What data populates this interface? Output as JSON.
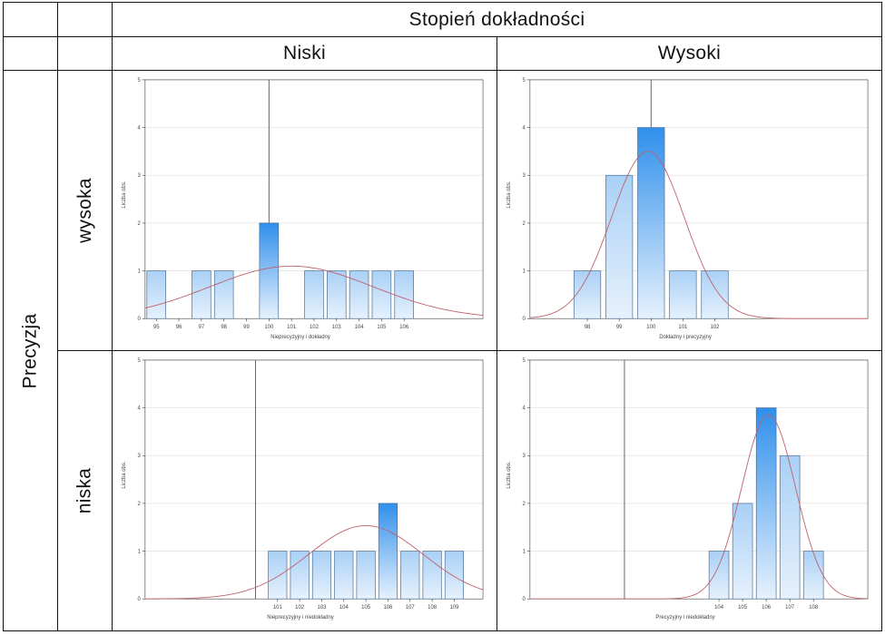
{
  "table": {
    "top_header": "Stopień dokładności",
    "col_low": "Niski",
    "col_high": "Wysoki",
    "row_group": "Precyzja",
    "row_high": "wysoka",
    "row_low": "niska"
  },
  "colors": {
    "bar_light": "#e6f1fc",
    "bar_mid": "#a9d0f6",
    "bar_dark": "#2f8fec",
    "bar_border": "#4a6f95",
    "curve": "#c0606a",
    "gridline": "#e2e2e2",
    "axis": "#333333"
  },
  "chart_data": [
    {
      "type": "bar",
      "ylabel": "Liczba obs.",
      "xlabel": "Nieprecyzyjny i dokładny",
      "xlim": [
        94.5,
        109.5
      ],
      "ylim": [
        0,
        5
      ],
      "yticks": [
        0,
        1,
        2,
        3,
        4,
        5
      ],
      "xticks": [
        "95",
        "96",
        "97",
        "98",
        "99",
        "100",
        "101",
        "102",
        "103",
        "104",
        "105",
        "106"
      ],
      "x": [
        95,
        96,
        97,
        98,
        99,
        100,
        101,
        102,
        103,
        104,
        105,
        106
      ],
      "values": [
        1,
        0,
        1,
        1,
        0,
        2,
        0,
        1,
        1,
        1,
        1,
        1
      ],
      "reference_line_x": 100,
      "normal_curve": {
        "mean": 101,
        "sd": 3.63
      }
    },
    {
      "type": "bar",
      "ylabel": "Liczba obs.",
      "xlabel": "Dokładny i precyzyjny",
      "xlim": [
        96.2,
        106.8
      ],
      "ylim": [
        0,
        5
      ],
      "yticks": [
        0,
        1,
        2,
        3,
        4,
        5
      ],
      "xticks": [
        "98",
        "99",
        "100",
        "101",
        "102"
      ],
      "x": [
        98,
        99,
        100,
        101,
        102
      ],
      "values": [
        1,
        3,
        4,
        1,
        1
      ],
      "reference_line_x": 100,
      "normal_curve": {
        "mean": 99.9,
        "sd": 1.14
      }
    },
    {
      "type": "bar",
      "ylabel": "Liczba obs.",
      "xlabel": "Nieprecyzyjny i niedokładny",
      "xlim": [
        95,
        110.3
      ],
      "ylim": [
        0,
        5
      ],
      "yticks": [
        0,
        1,
        2,
        3,
        4,
        5
      ],
      "xticks": [
        "101",
        "102",
        "103",
        "104",
        "105",
        "106",
        "107",
        "108",
        "109"
      ],
      "x": [
        101,
        102,
        103,
        104,
        105,
        106,
        107,
        108,
        109
      ],
      "values": [
        1,
        1,
        1,
        1,
        1,
        2,
        1,
        1,
        1
      ],
      "reference_line_x": 100,
      "normal_curve": {
        "mean": 105,
        "sd": 2.6
      }
    },
    {
      "type": "bar",
      "ylabel": "Liczba obs.",
      "xlabel": "Precyzyjny i niedokładny",
      "xlim": [
        96,
        110.3
      ],
      "ylim": [
        0,
        5
      ],
      "yticks": [
        0,
        1,
        2,
        3,
        4,
        5
      ],
      "xticks": [
        "104",
        "105",
        "106",
        "107",
        "108"
      ],
      "x": [
        104,
        105,
        106,
        107,
        108
      ],
      "values": [
        1,
        2,
        4,
        3,
        1
      ],
      "reference_line_x": 100,
      "normal_curve": {
        "mean": 106.1,
        "sd": 1.14
      }
    }
  ]
}
